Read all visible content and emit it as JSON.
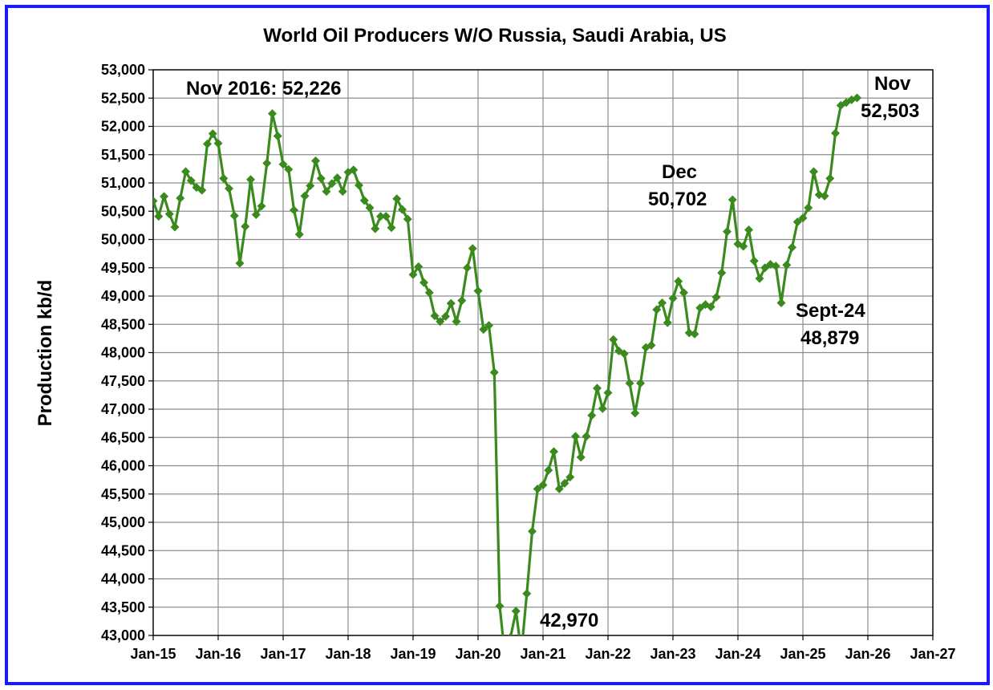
{
  "chart_data": {
    "type": "line",
    "title": "World Oil Producers W/O Russia, Saudi Arabia, US",
    "ylabel": "Production kb/d",
    "xlabel": "",
    "ylim": [
      43000,
      53000
    ],
    "y_ticks": [
      "43,000",
      "43,500",
      "44,000",
      "44,500",
      "45,000",
      "45,500",
      "46,000",
      "46,500",
      "47,000",
      "47,500",
      "48,000",
      "48,500",
      "49,000",
      "49,500",
      "50,000",
      "50,500",
      "51,000",
      "51,500",
      "52,000",
      "52,500",
      "53,000"
    ],
    "x_ticks": [
      "Jan-15",
      "Jan-16",
      "Jan-17",
      "Jan-18",
      "Jan-19",
      "Jan-20",
      "Jan-21",
      "Jan-22",
      "Jan-23",
      "Jan-24",
      "Jan-25",
      "Jan-26",
      "Jan-27"
    ],
    "grid": true,
    "legend": "none",
    "series_color": "#3a8a1e",
    "start_month": "Jan-15",
    "values": [
      50680,
      50410,
      50760,
      50450,
      50220,
      50730,
      51200,
      51040,
      50920,
      50870,
      51690,
      51870,
      51700,
      51080,
      50900,
      50420,
      49580,
      50230,
      51060,
      50440,
      50590,
      51350,
      52226,
      51830,
      51330,
      51240,
      50520,
      50090,
      50770,
      50950,
      51390,
      51080,
      50850,
      50990,
      51090,
      50850,
      51190,
      51230,
      50960,
      50690,
      50560,
      50190,
      50410,
      50410,
      50210,
      50720,
      50530,
      50360,
      49380,
      49520,
      49240,
      49060,
      48650,
      48550,
      48640,
      48870,
      48550,
      48920,
      49500,
      49840,
      49090,
      48410,
      48480,
      47650,
      43520,
      42600,
      42970,
      43430,
      42700,
      43740,
      44840,
      45590,
      45660,
      45920,
      46250,
      45590,
      45690,
      45800,
      46520,
      46150,
      46520,
      46890,
      47370,
      47010,
      47290,
      48230,
      48030,
      47980,
      47460,
      46930,
      47460,
      48090,
      48130,
      48760,
      48880,
      48530,
      48960,
      49260,
      49060,
      48350,
      48330,
      48790,
      48850,
      48810,
      48980,
      49410,
      50140,
      50702,
      49920,
      49880,
      50170,
      49620,
      49310,
      49500,
      49560,
      49530,
      48879,
      49550,
      49860,
      50310,
      50380,
      50560,
      51200,
      50790,
      50770,
      51080,
      51880,
      52370,
      52420,
      52470,
      52503
    ],
    "annotations": [
      {
        "text": "Nov 2016: 52,226"
      },
      {
        "text": "Dec"
      },
      {
        "text": "50,702"
      },
      {
        "text": "Nov"
      },
      {
        "text": "52,503"
      },
      {
        "text": "Sept-24"
      },
      {
        "text": "48,879"
      },
      {
        "text": "42,970"
      }
    ]
  }
}
